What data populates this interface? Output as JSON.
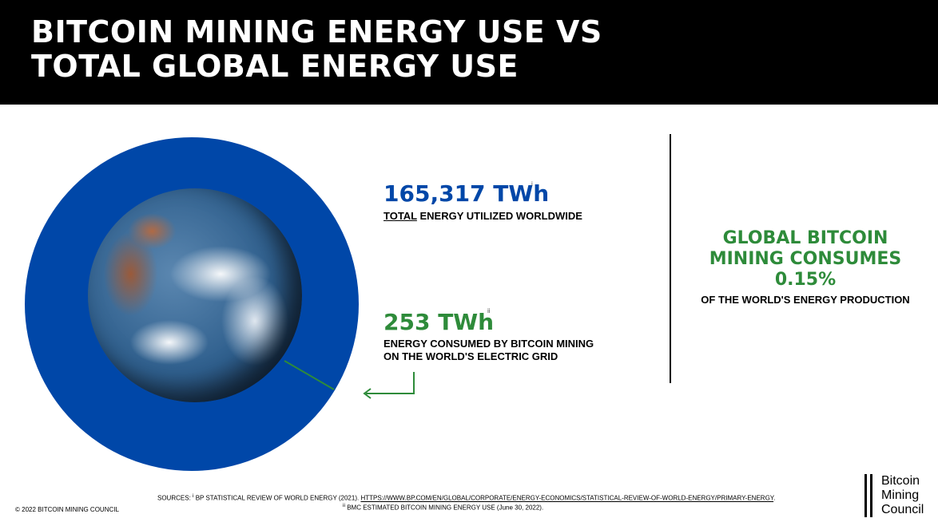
{
  "header": {
    "title_line1": "BITCOIN MINING ENERGY USE VS",
    "title_line2": "TOTAL GLOBAL ENERGY USE"
  },
  "stats": {
    "total": {
      "value": "165,317 TWh",
      "footnote": "i",
      "label_underlined": "TOTAL",
      "label_rest": " ENERGY UTILIZED WORLDWIDE"
    },
    "bitcoin": {
      "value": "253 TWh",
      "footnote": "ii",
      "label_line1": "ENERGY CONSUMED BY BITCOIN MINING",
      "label_line2": "ON THE WORLD'S ELECTRIC GRID"
    }
  },
  "summary": {
    "line1": "GLOBAL BITCOIN",
    "line2": "MINING CONSUMES",
    "line3": "0.15%",
    "sub": "OF THE WORLD'S ENERGY PRODUCTION"
  },
  "sources": {
    "prefix": "SOURCES: ",
    "marker1": "i",
    "text1": " BP STATISTICAL REVIEW OF WORLD ENERGY (2021). ",
    "link1": "HTTPS://WWW.BP.COM/EN/GLOBAL/CORPORATE/ENERGY-ECONOMICS/STATISTICAL-REVIEW-OF-WORLD-ENERGY/PRIMARY-ENERGY",
    "link1_end": ".",
    "marker2": "ii",
    "text2": " BMC ESTIMATED BITCOIN MINING ENERGY USE (June 30, 2022)."
  },
  "footer": {
    "copyright": "© 2022 BITCOIN MINING COUNCIL"
  },
  "logo": {
    "line1": "Bitcoin",
    "line2": "Mining",
    "line3": "Council"
  },
  "colors": {
    "title_bg": "#000000",
    "disc_blue": "#0047a8",
    "accent_green": "#2e8b3a"
  }
}
